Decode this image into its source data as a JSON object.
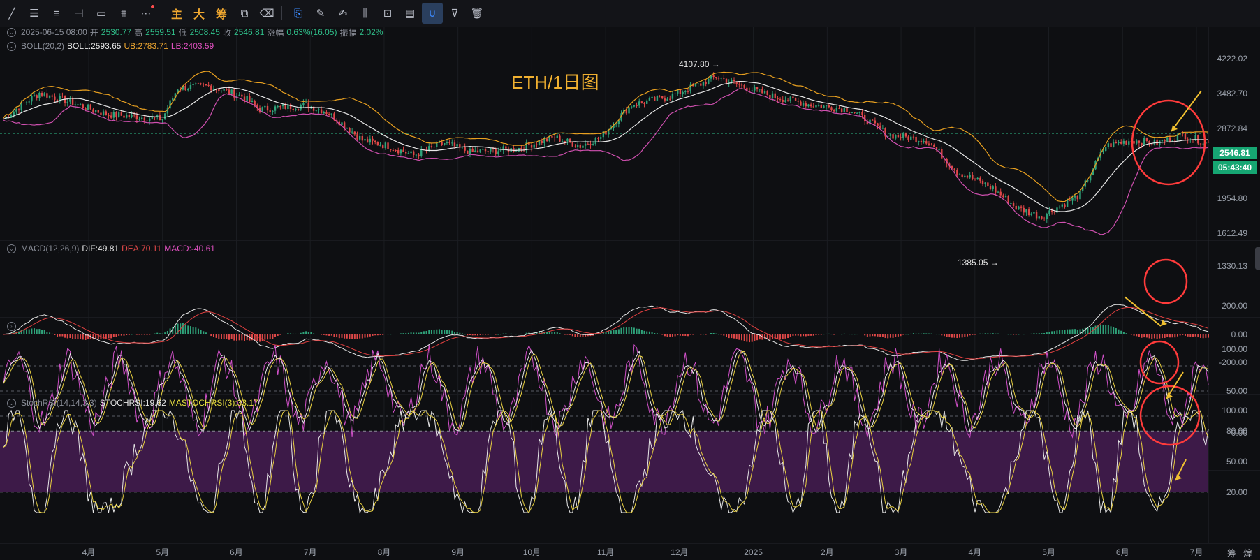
{
  "toolbar": {
    "tools": [
      "trend-line-tool",
      "horizontal-lines-tool",
      "parallel-lines-tool",
      "horizontal-ray-tool",
      "rectangle-tool",
      "pattern-tool",
      "more-tools"
    ],
    "text_buttons": [
      "主",
      "大",
      "筹"
    ],
    "tools2": [
      "measure-tool",
      "eraser-tool"
    ],
    "tools3": [
      "bookmark-tool",
      "pencil-tool",
      "brush-tool",
      "candles-tool",
      "lock-tool",
      "note-tool",
      "magnet-tool",
      "filter-tool",
      "trash-tool"
    ]
  },
  "ohlc": {
    "date": "2025-06-15 08:00",
    "open_label": "开",
    "open": "2530.77",
    "high_label": "高",
    "high": "2559.51",
    "low_label": "低",
    "low": "2508.45",
    "close_label": "收",
    "close": "2546.81",
    "change_label": "涨幅",
    "change": "0.63%(16.05)",
    "amp_label": "振幅",
    "amp": "2.02%"
  },
  "boll": {
    "name": "BOLL(20,2)",
    "boll": "BOLL:2593.65",
    "ub": "UB:2783.71",
    "lb": "LB:2403.59"
  },
  "title": "ETH/1日图",
  "annotations": {
    "high": "4107.80",
    "low": "1385.05"
  },
  "price_axis": [
    "4222.02",
    "3482.70",
    "2872.84",
    "1954.80",
    "1612.49",
    "1330.13"
  ],
  "price_tag": {
    "price": "2546.81",
    "countdown": "05:43:40",
    "color": "#16a673"
  },
  "macd": {
    "name": "MACD(12,26,9)",
    "dif": "DIF:49.81",
    "dea": "DEA:70.11",
    "macd": "MACD:-40.61",
    "axis": [
      "200.00",
      "0.00",
      "-200.00"
    ]
  },
  "kdj": {
    "axis": [
      "100.00",
      "50.00",
      "0.00"
    ]
  },
  "stochrsi": {
    "name": "StochRSI(14,14,3,3)",
    "stoch": "STOCHRSI:19.62",
    "ma": "MASTOCHRSI(3):33.17",
    "axis": [
      "100.00",
      "80.00",
      "50.00",
      "20.00"
    ]
  },
  "x_axis": [
    "4月",
    "5月",
    "6月",
    "7月",
    "8月",
    "9月",
    "10月",
    "11月",
    "12月",
    "2025",
    "2月",
    "3月",
    "4月",
    "5月",
    "6月",
    "7月"
  ],
  "corner": [
    "筹",
    "煌"
  ],
  "colors": {
    "up": "#2fa37a",
    "down": "#e04848",
    "boll_mid": "#e8e8e8",
    "boll_ub": "#e8a020",
    "boll_lb": "#d050b0",
    "circle": "#ff3b3b",
    "arrow": "#f0c030",
    "stoch_bg": "#3d1a48"
  }
}
